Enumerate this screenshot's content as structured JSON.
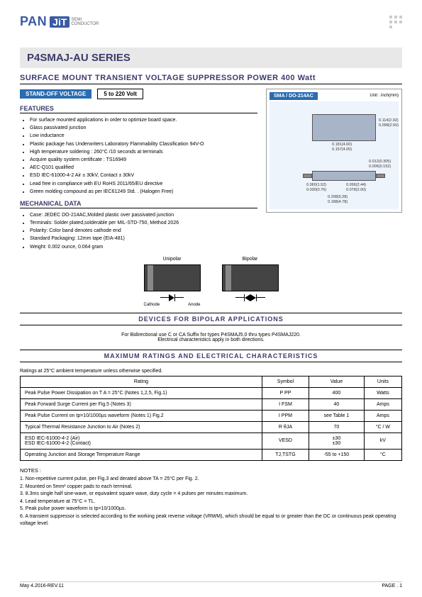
{
  "logo": {
    "brand1": "PAN",
    "brand2": "JiT",
    "sub1": "SEMI",
    "sub2": "CONDUCTOR"
  },
  "title": "P4SMAJ-AU SERIES",
  "subtitle": "SURFACE  MOUNT  TRANSIENT  VOLTAGE  SUPPRESSOR  POWER  400 Watt",
  "badge1": "STAND-OFF  VOLTAGE",
  "badge2": "5 to 220 Volt",
  "pkg_label": "SMA / DO-214AC",
  "pkg_unit": "Unit : inch(mm)",
  "features_head": "FEATURES",
  "features": [
    "For surface mounted applications in order to optimize board space.",
    "Glass passivated junction",
    "Low inductance",
    "Plastic package has Underwriters Laboratory Flammability Classification 94V-O",
    "High temperature soldering : 260°C /10 seconds at terminals",
    "Acquire quality system certificate : TS16949",
    "AEC-Q101 qualified",
    "ESD IEC-61000-4-2 Air ± 30kV, Contact ± 30kV",
    "Lead free in compliance with EU RoHS 2011/65/EU directive",
    "Green molding compound as per IEC61249 Std. . (Halogen Free)"
  ],
  "mech_head": "MECHANICAL DATA",
  "mech": [
    "Case: JEDEC DO-214AC,Molded plastic over passivated junction",
    "Terminals: Solder plated,solderable per MIL-STD-750, Method 2026",
    "Polarity: Color band denotes cathode end",
    "Standard Packaging: 12mm tape (EIA-481)",
    "Weight: 0.002 ounce, 0.064 gram"
  ],
  "dev_uni": "Unipolar",
  "dev_bi": "Bipolar",
  "dev_cathode": "Cathode",
  "dev_anode": "Anode",
  "bipolar_head": "DEVICES  FOR  BIPOLAR  APPLICATIONS",
  "bipolar_note1": "For Bidirectional use C or CA Suffix for types P4SMAJ5.0 thru types P4SMAJ220.",
  "bipolar_note2": "Electrical characteristics apply in both directions.",
  "max_head": "MAXIMUM  RATINGS  AND  ELECTRICAL  CHARACTERISTICS",
  "ratings_note": "Ratings at 25°C ambient temperature unless otherwise specified.",
  "table": {
    "headers": [
      "Rating",
      "Symbol",
      "Value",
      "Units"
    ],
    "rows": [
      [
        "Peak Pulse Power Dissipation on T A = 25°C (Notes 1,2,5, Fig.1)",
        "P PP",
        "400",
        "Watts"
      ],
      [
        "Peak Forward Surge Current per Fig.5 (Notes 3)",
        "I FSM",
        "40",
        "Amps"
      ],
      [
        "Peak Pulse Current on tp=10/1000µs waveform (Notes 1) Fig.2",
        "I PPM",
        "see Table 1",
        "Amps"
      ],
      [
        "Typical Thermal Resistance Junction to Air (Notes 2)",
        "R θJA",
        "70",
        "°C / W"
      ],
      [
        "ESD IEC-61000-4-2 (Air)\nESD IEC-61000-4-2 (Contact)",
        "VESD",
        "±30\n±30",
        "kV"
      ],
      [
        "Operating Junction and Storage Temperature Range",
        "TJ,TSTG",
        "-55 to +150",
        "°C"
      ]
    ]
  },
  "notes_head": "NOTES :",
  "notes": [
    "1. Non-repetitive current pulse, per Fig.3 and derated above TA = 25°C per Fig. 2.",
    "2. Mounted on 5mm² copper pads to each terminal.",
    "3. 8.3ms single half sine-wave, or equivalent square wave, duty cycle = 4 pulses per minutes maximum.",
    "4. Lead temperature at 75°C = TL.",
    "5. Peak pulse power waveform is tp=10/1000µs.",
    "6.  A transient suppressor is selected according to the working peak reverse voltage (VRWM), which should be equal to or greater than the DC or continuous peak operating voltage level."
  ],
  "footer_left": "May 4.2016-REV.11",
  "footer_right": "PAGE .  1",
  "pkg_dims": {
    "d1": "0.181(4.60)",
    "d2": "0.157(4.00)",
    "d3": "0.114(2.92)",
    "d4": "0.098(2.50)",
    "d5": "0.012(0.305)",
    "d6": "0.006(0.152)",
    "d7": "0.060(1.52)",
    "d8": "0.030(0.76)",
    "d9": "0.096(2.44)",
    "d10": "0.078(2.00)",
    "d11": "0.208(5.28)",
    "d12": "0.188(4.78)"
  },
  "colors": {
    "brand": "#3b5ba5",
    "head": "#3b3b6b",
    "badge": "#2b6cb0",
    "pkg_bg": "#eef4fb",
    "pkg_body": "#a8b4c8"
  }
}
